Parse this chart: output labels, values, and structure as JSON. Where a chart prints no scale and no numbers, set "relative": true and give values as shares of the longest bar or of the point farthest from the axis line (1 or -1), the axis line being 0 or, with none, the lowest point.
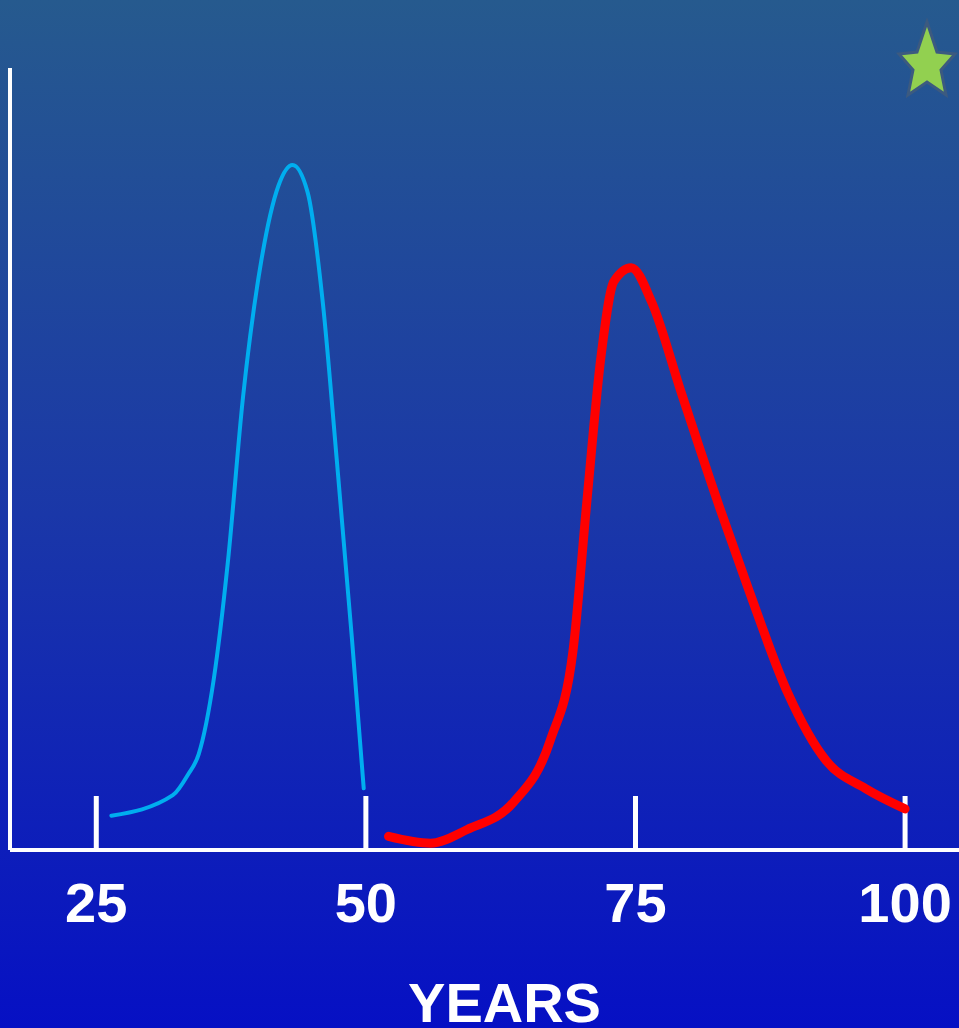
{
  "chart_data": {
    "type": "line",
    "relative": true,
    "xlabel": "YEARS",
    "xlim": [
      17,
      105
    ],
    "xticks": [
      25,
      50,
      75,
      100
    ],
    "line_style": "solid",
    "series": [
      {
        "color": "#00aeef",
        "x": [
          26.4,
          32.1,
          33.5,
          34.5,
          35.9,
          37.2,
          38.6,
          40.3,
          41.9,
          43.2,
          44.6,
          46.0,
          47.3,
          48.7,
          49.8
        ],
        "values": [
          0.05,
          0.08,
          0.11,
          0.14,
          0.25,
          0.42,
          0.66,
          0.86,
          0.97,
          1,
          0.96,
          0.8,
          0.57,
          0.31,
          0.09
        ]
      },
      {
        "color": "#ff0000",
        "x": [
          52.1,
          56.0,
          59.4,
          63.7,
          67.1,
          69.2,
          70.5,
          71.8,
          73.0,
          74.6,
          76.5,
          79.2,
          82.8,
          85.5,
          89.1,
          92.7,
          96.3,
          100
        ],
        "values": [
          0.02,
          0.01,
          0.03,
          0.07,
          0.16,
          0.29,
          0.51,
          0.72,
          0.83,
          0.85,
          0.8,
          0.67,
          0.5,
          0.38,
          0.23,
          0.13,
          0.09,
          0.06
        ]
      }
    ]
  }
}
